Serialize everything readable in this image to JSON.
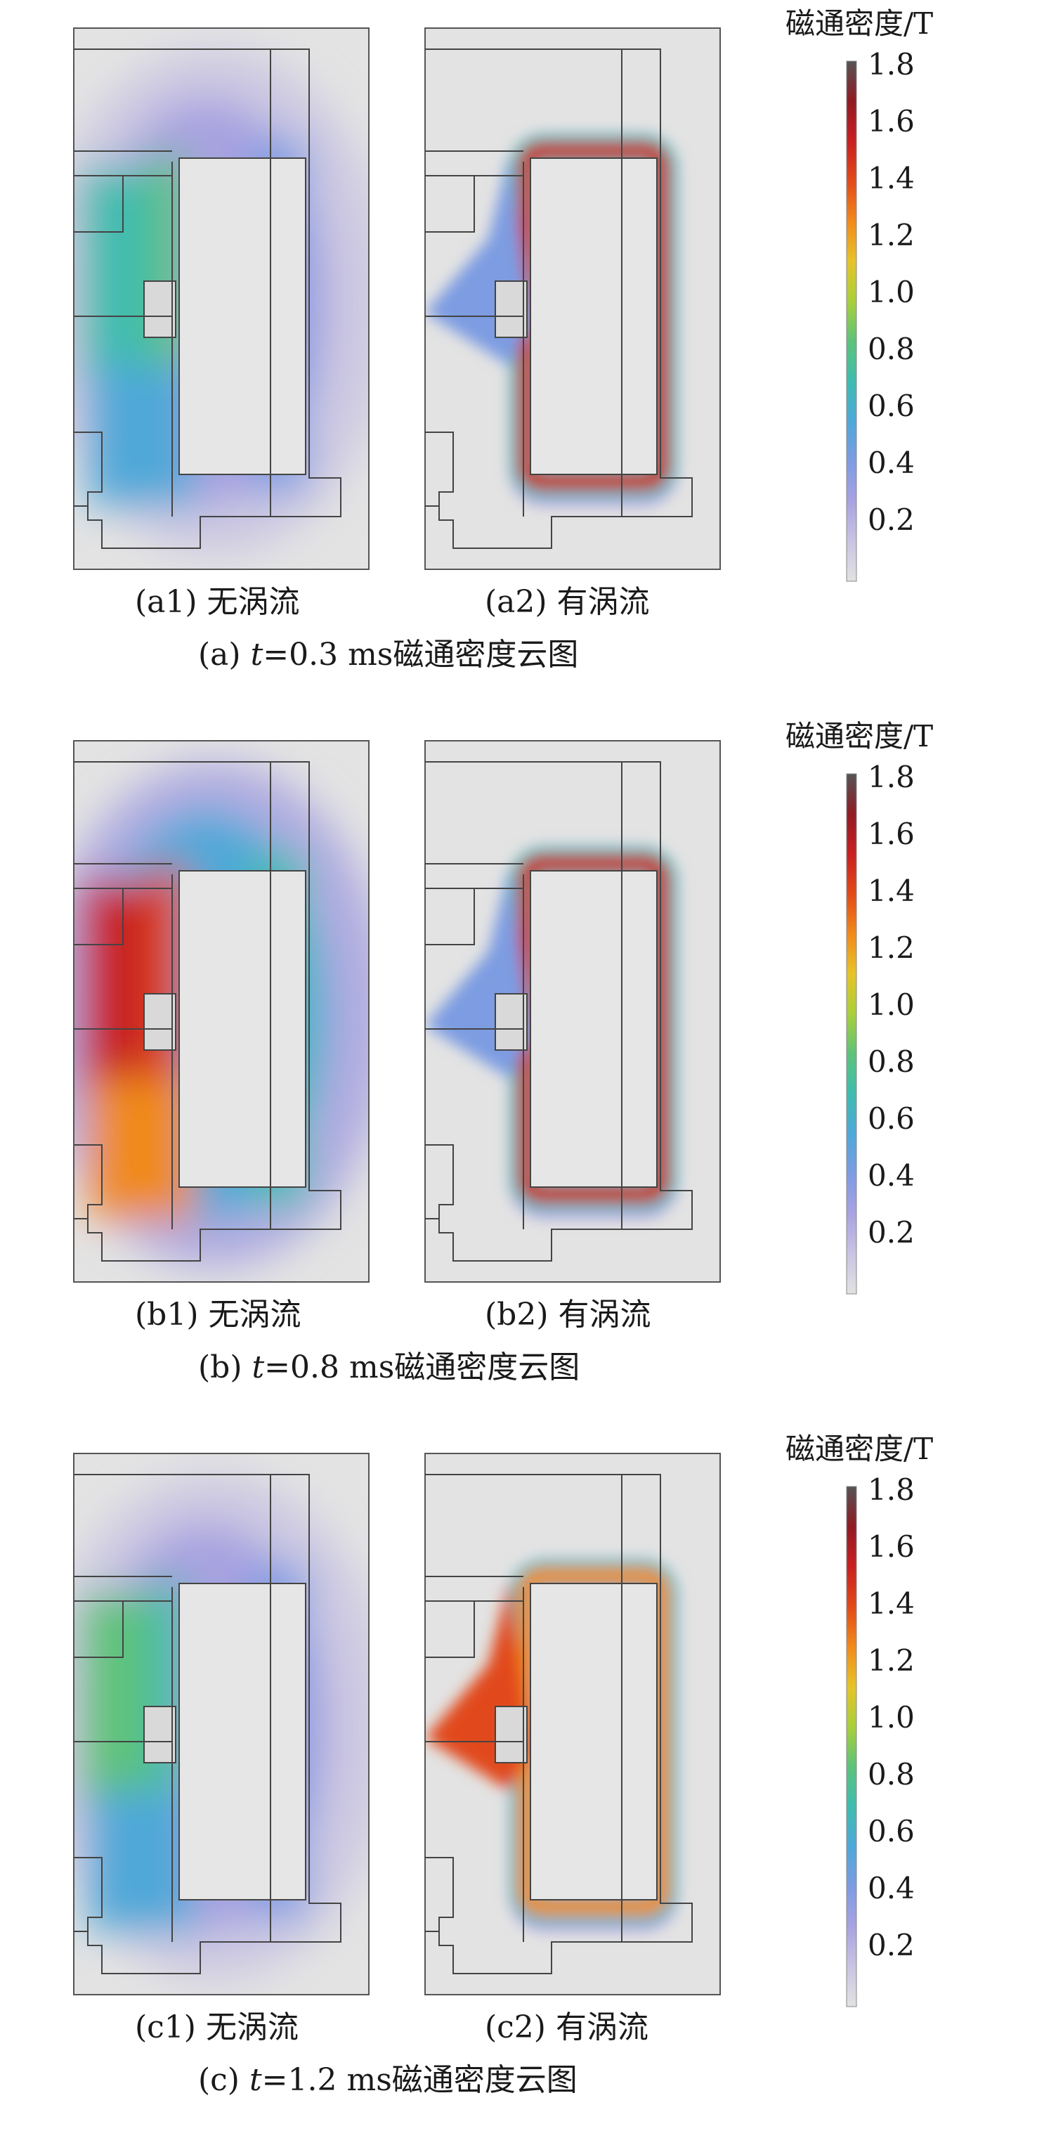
{
  "colorbar_title": "磁通密度/T",
  "colorbar_ticks": [
    "1.8",
    "1.6",
    "1.4",
    "1.2",
    "1.0",
    "0.8",
    "0.6",
    "0.4",
    "0.2"
  ],
  "colormap": [
    "#e2e2e2",
    "#c9c4e2",
    "#a8a2e0",
    "#7d9ce2",
    "#4fa8d8",
    "#3fbcb0",
    "#5ec27a",
    "#a9cf3c",
    "#e6c32a",
    "#f08a1c",
    "#e14a1a",
    "#c82020",
    "#8f1c24",
    "#555555"
  ],
  "groups": [
    {
      "id": "a",
      "left_label": "(a1) 无涡流",
      "right_label": "(a2) 有涡流",
      "title_prefix": "(a) ",
      "title_var": "t",
      "title_suffix": "=0.3 ms磁通密度云图"
    },
    {
      "id": "b",
      "left_label": "(b1) 无涡流",
      "right_label": "(b2) 有涡流",
      "title_prefix": "(b) ",
      "title_var": "t",
      "title_suffix": "=0.8 ms磁通密度云图"
    },
    {
      "id": "c",
      "left_label": "(c1) 无涡流",
      "right_label": "(c2) 有涡流",
      "title_prefix": "(c) ",
      "title_var": "t",
      "title_suffix": "=1.2 ms磁通密度云图"
    }
  ]
}
